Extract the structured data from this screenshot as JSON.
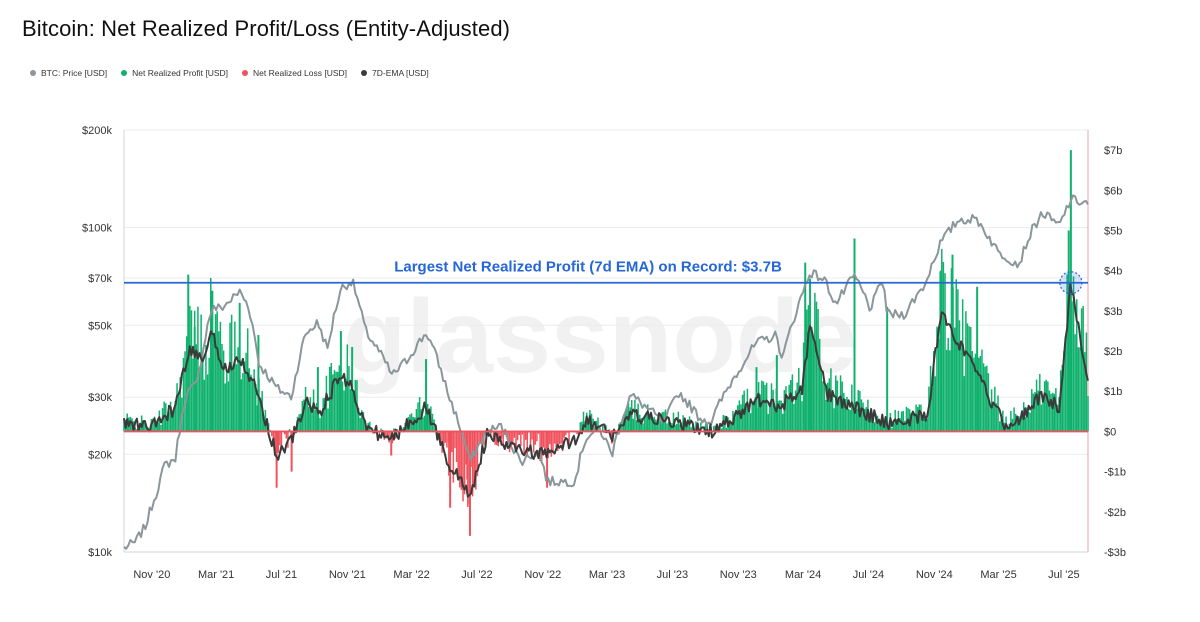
{
  "title": "Bitcoin: Net Realized Profit/Loss (Entity-Adjusted)",
  "watermark": "glassnode",
  "legend": [
    {
      "label": "BTC: Price [USD]",
      "color": "#8a9699"
    },
    {
      "label": "Net Realized Profit [USD]",
      "color": "#0fb16d"
    },
    {
      "label": "Net Realized Loss [USD]",
      "color": "#f0525d"
    },
    {
      "label": "7D-EMA [USD]",
      "color": "#3a3a3a"
    }
  ],
  "colors": {
    "price": "#8a9699",
    "profit": "#0fb16d",
    "loss": "#f0525d",
    "ema": "#3a3a3a",
    "zero_line": "#e8545f",
    "record_line": "#2566d8",
    "right_axis": "#f0a0a6"
  },
  "chart_data": {
    "type": "line",
    "x_tick_labels": [
      "Nov '20",
      "Mar '21",
      "Jul '21",
      "Nov '21",
      "Mar '22",
      "Jul '22",
      "Nov '22",
      "Mar '23",
      "Jul '23",
      "Nov '23",
      "Mar '24",
      "Jul '24",
      "Nov '24",
      "Mar '25",
      "Jul '25"
    ],
    "x_tick_dates": [
      "2020-11-01",
      "2021-03-01",
      "2021-07-01",
      "2021-11-01",
      "2022-03-01",
      "2022-07-01",
      "2022-11-01",
      "2023-03-01",
      "2023-07-01",
      "2023-11-01",
      "2024-03-01",
      "2024-07-01",
      "2024-11-01",
      "2025-03-01",
      "2025-07-01"
    ],
    "xlim": [
      "2020-09-10",
      "2025-08-15"
    ],
    "left_axis": {
      "scale": "log",
      "unit": "USD",
      "ylim": [
        10000,
        200000
      ],
      "ticks": [
        10000,
        20000,
        30000,
        50000,
        70000,
        100000,
        200000
      ],
      "tick_labels": [
        "$10k",
        "$20k",
        "$30k",
        "$50k",
        "$70k",
        "$100k",
        "$200k"
      ]
    },
    "right_axis": {
      "scale": "linear",
      "unit": "USD billions",
      "ylim": [
        -3,
        7.5
      ],
      "ticks": [
        -3,
        -2,
        -1,
        0,
        1,
        2,
        3,
        4,
        5,
        6,
        7
      ],
      "tick_labels": [
        "-$3b",
        "-$2b",
        "-$1b",
        "$0",
        "$1b",
        "$2b",
        "$3b",
        "$4b",
        "$5b",
        "$6b",
        "$7b"
      ]
    },
    "annotation": {
      "text": "Largest Net Realized Profit (7d EMA) on Record: $3.7B",
      "value_b": 3.7,
      "date": "2025-07-14"
    },
    "series": [
      {
        "name": "BTC: Price [USD]",
        "axis": "left",
        "points": [
          [
            "2020-09-10",
            10300
          ],
          [
            "2020-10-01",
            10700
          ],
          [
            "2020-10-20",
            12000
          ],
          [
            "2020-11-10",
            15300
          ],
          [
            "2020-11-25",
            18500
          ],
          [
            "2020-12-15",
            19400
          ],
          [
            "2021-01-05",
            31000
          ],
          [
            "2021-01-25",
            33000
          ],
          [
            "2021-02-20",
            56000
          ],
          [
            "2021-03-15",
            57000
          ],
          [
            "2021-04-14",
            63500
          ],
          [
            "2021-05-01",
            57000
          ],
          [
            "2021-05-20",
            38000
          ],
          [
            "2021-06-22",
            32000
          ],
          [
            "2021-07-20",
            30000
          ],
          [
            "2021-08-15",
            47000
          ],
          [
            "2021-09-07",
            51000
          ],
          [
            "2021-09-25",
            42000
          ],
          [
            "2021-10-20",
            65000
          ],
          [
            "2021-11-10",
            68500
          ],
          [
            "2021-12-05",
            48000
          ],
          [
            "2022-01-24",
            35000
          ],
          [
            "2022-02-20",
            39000
          ],
          [
            "2022-03-29",
            47500
          ],
          [
            "2022-05-10",
            30000
          ],
          [
            "2022-06-18",
            19000
          ],
          [
            "2022-07-20",
            23500
          ],
          [
            "2022-08-15",
            24400
          ],
          [
            "2022-09-20",
            19000
          ],
          [
            "2022-10-25",
            20500
          ],
          [
            "2022-11-09",
            16500
          ],
          [
            "2022-12-31",
            16500
          ],
          [
            "2023-01-20",
            22500
          ],
          [
            "2023-02-15",
            24000
          ],
          [
            "2023-03-10",
            20000
          ],
          [
            "2023-04-14",
            30500
          ],
          [
            "2023-06-15",
            25000
          ],
          [
            "2023-07-13",
            31000
          ],
          [
            "2023-08-20",
            26000
          ],
          [
            "2023-09-11",
            25200
          ],
          [
            "2023-10-24",
            34500
          ],
          [
            "2023-12-05",
            44000
          ],
          [
            "2024-01-10",
            46500
          ],
          [
            "2024-01-23",
            39500
          ],
          [
            "2024-02-28",
            62000
          ],
          [
            "2024-03-14",
            73000
          ],
          [
            "2024-04-10",
            69000
          ],
          [
            "2024-05-01",
            58000
          ],
          [
            "2024-06-05",
            71000
          ],
          [
            "2024-07-05",
            56000
          ],
          [
            "2024-07-28",
            69000
          ],
          [
            "2024-08-05",
            54000
          ],
          [
            "2024-09-06",
            54000
          ],
          [
            "2024-10-15",
            67000
          ],
          [
            "2024-11-13",
            90000
          ],
          [
            "2024-12-17",
            106000
          ],
          [
            "2025-01-20",
            106000
          ],
          [
            "2025-02-03",
            98000
          ],
          [
            "2025-02-28",
            84000
          ],
          [
            "2025-04-08",
            77000
          ],
          [
            "2025-05-01",
            97000
          ],
          [
            "2025-05-22",
            111000
          ],
          [
            "2025-06-22",
            101000
          ],
          [
            "2025-07-14",
            122000
          ],
          [
            "2025-08-14",
            119000
          ]
        ]
      },
      {
        "name": "7D-EMA [USD]",
        "axis": "right",
        "unit": "USD billions",
        "points": [
          [
            "2020-09-10",
            0.2
          ],
          [
            "2020-11-01",
            0.1
          ],
          [
            "2020-12-15",
            0.6
          ],
          [
            "2021-01-10",
            2.0
          ],
          [
            "2021-02-10",
            1.8
          ],
          [
            "2021-02-22",
            2.5
          ],
          [
            "2021-03-15",
            1.5
          ],
          [
            "2021-04-14",
            1.9
          ],
          [
            "2021-05-19",
            0.9
          ],
          [
            "2021-06-22",
            -0.6
          ],
          [
            "2021-07-20",
            -0.2
          ],
          [
            "2021-08-20",
            0.8
          ],
          [
            "2021-09-07",
            0.4
          ],
          [
            "2021-10-20",
            1.4
          ],
          [
            "2021-11-10",
            1.1
          ],
          [
            "2021-12-05",
            0.1
          ],
          [
            "2022-01-22",
            -0.2
          ],
          [
            "2022-03-28",
            0.6
          ],
          [
            "2022-05-10",
            -0.8
          ],
          [
            "2022-06-18",
            -1.6
          ],
          [
            "2022-07-20",
            -0.1
          ],
          [
            "2022-09-01",
            -0.4
          ],
          [
            "2022-11-09",
            -0.6
          ],
          [
            "2022-12-31",
            -0.2
          ],
          [
            "2023-01-20",
            0.3
          ],
          [
            "2023-03-10",
            -0.1
          ],
          [
            "2023-04-14",
            0.4
          ],
          [
            "2023-07-13",
            0.2
          ],
          [
            "2023-09-11",
            0.0
          ],
          [
            "2023-10-24",
            0.3
          ],
          [
            "2023-12-05",
            0.8
          ],
          [
            "2024-01-12",
            0.6
          ],
          [
            "2024-02-28",
            1.0
          ],
          [
            "2024-03-14",
            2.6
          ],
          [
            "2024-04-15",
            0.9
          ],
          [
            "2024-06-05",
            0.6
          ],
          [
            "2024-08-05",
            0.2
          ],
          [
            "2024-10-20",
            0.4
          ],
          [
            "2024-11-13",
            3.0
          ],
          [
            "2024-12-17",
            2.2
          ],
          [
            "2025-01-20",
            1.4
          ],
          [
            "2025-03-10",
            0.2
          ],
          [
            "2025-04-08",
            0.3
          ],
          [
            "2025-05-22",
            0.9
          ],
          [
            "2025-06-22",
            0.6
          ],
          [
            "2025-07-14",
            3.7
          ],
          [
            "2025-08-14",
            1.3
          ]
        ]
      },
      {
        "name": "Net Realized Profit [USD]",
        "axis": "right",
        "unit": "USD billions",
        "style": "spikes",
        "peaks": [
          [
            "2021-01-08",
            3.9
          ],
          [
            "2021-01-20",
            2.6
          ],
          [
            "2021-02-22",
            3.5
          ],
          [
            "2021-04-14",
            3.2
          ],
          [
            "2021-05-19",
            2.4
          ],
          [
            "2021-09-07",
            1.6
          ],
          [
            "2021-10-20",
            2.5
          ],
          [
            "2021-11-10",
            2.1
          ],
          [
            "2022-03-28",
            1.8
          ],
          [
            "2023-04-14",
            0.6
          ],
          [
            "2023-12-05",
            1.6
          ],
          [
            "2024-01-12",
            1.9
          ],
          [
            "2024-03-05",
            4.2
          ],
          [
            "2024-03-14",
            3.8
          ],
          [
            "2024-06-05",
            4.8
          ],
          [
            "2024-08-05",
            3.1
          ],
          [
            "2024-11-13",
            4.0
          ],
          [
            "2024-12-05",
            4.4
          ],
          [
            "2025-01-20",
            3.6
          ],
          [
            "2025-07-10",
            5.0
          ],
          [
            "2025-07-14",
            7.0
          ]
        ]
      },
      {
        "name": "Net Realized Loss [USD]",
        "axis": "right",
        "unit": "USD billions",
        "style": "spikes",
        "troughs": [
          [
            "2021-06-22",
            -1.4
          ],
          [
            "2021-07-20",
            -1.0
          ],
          [
            "2022-01-22",
            -0.6
          ],
          [
            "2022-05-10",
            -1.1
          ],
          [
            "2022-05-12",
            -1.9
          ],
          [
            "2022-06-13",
            -1.2
          ],
          [
            "2022-06-18",
            -2.6
          ],
          [
            "2022-11-09",
            -1.4
          ],
          [
            "2023-03-10",
            -0.3
          ]
        ]
      }
    ]
  }
}
